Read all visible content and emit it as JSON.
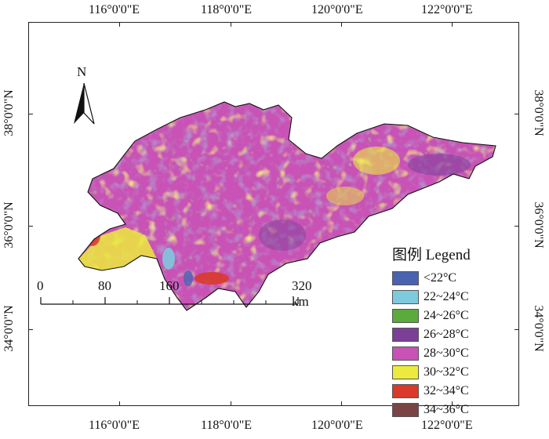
{
  "longitude_labels": [
    "116°0'0\"E",
    "118°0'0\"E",
    "120°0'0\"E",
    "122°0'0\"E"
  ],
  "latitude_labels": [
    "38°0'0\"N",
    "36°0'0\"N",
    "34°0'0\"N"
  ],
  "north_arrow": {
    "label": "N"
  },
  "scale_bar": {
    "labels": [
      "0",
      "80",
      "160",
      "320 km"
    ]
  },
  "legend": {
    "title": "图例 Legend",
    "items": [
      {
        "label": "<22°C",
        "color": "#4a63b0"
      },
      {
        "label": "22~24°C",
        "color": "#7fc9dd"
      },
      {
        "label": "24~26°C",
        "color": "#5aaa3c"
      },
      {
        "label": "26~28°C",
        "color": "#7b3f98"
      },
      {
        "label": "28~30°C",
        "color": "#c852b5"
      },
      {
        "label": "30~32°C",
        "color": "#ecea3c"
      },
      {
        "label": "32~34°C",
        "color": "#d93a2a"
      },
      {
        "label": "34~36°C",
        "color": "#7a4444"
      }
    ]
  }
}
